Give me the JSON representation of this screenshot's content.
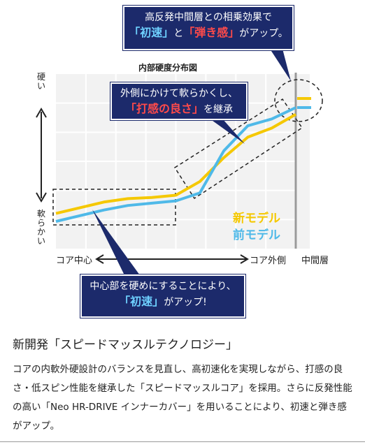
{
  "chart_data": {
    "type": "line",
    "title": "内部硬度分布図",
    "y_axis": {
      "top_label": "硬い",
      "bottom_label": "軟らかい"
    },
    "x_axis": {
      "left_label": "コア中心",
      "right_label": "コア外側",
      "extra_label": "中間層"
    },
    "x": [
      0,
      1,
      2,
      3,
      4,
      5,
      6,
      7,
      8,
      9,
      10
    ],
    "series": [
      {
        "name": "新モデル",
        "color": "#f5c800",
        "values": [
          0.07,
          0.12,
          0.17,
          0.2,
          0.21,
          0.23,
          0.35,
          0.56,
          0.74,
          0.82,
          0.94
        ]
      },
      {
        "name": "前モデル",
        "color": "#4fb9e8",
        "values": [
          0.0,
          0.05,
          0.1,
          0.14,
          0.16,
          0.18,
          0.25,
          0.62,
          0.84,
          0.9,
          1.0
        ]
      }
    ],
    "grid": true
  },
  "callouts": {
    "top": {
      "line1": "高反発中間層との相乗効果で",
      "em1": "「初速」",
      "mid": "と",
      "em2": "「弾き感」",
      "tail": "がアップ。"
    },
    "middle": {
      "line1": "外側にかけて軟らかくし、",
      "em1": "「打感の良さ」",
      "tail": "を継承"
    },
    "bottom": {
      "line1": "中心部を硬めにすることにより、",
      "em1": "「初速」",
      "tail": "がアップ!"
    }
  },
  "section": {
    "heading": "新開発「スピードマッスルテクノロジー」",
    "body": "コアの内軟外硬設計のバランスを見直し、高初速化を実現しながら、打感の良さ・低スピン性能を継承した「スピードマッスルコア」を採用。さらに反発性能の高い「Neo HR-DRIVE インナーカバー」を用いることにより、初速と弾き感がアップ。"
  },
  "colors": {
    "navy": "#1c2a6b",
    "red_emphasis": "#ff4a4a",
    "blue_emphasis": "#6ed0ff",
    "new_model": "#f5c800",
    "old_model": "#4fb9e8"
  }
}
